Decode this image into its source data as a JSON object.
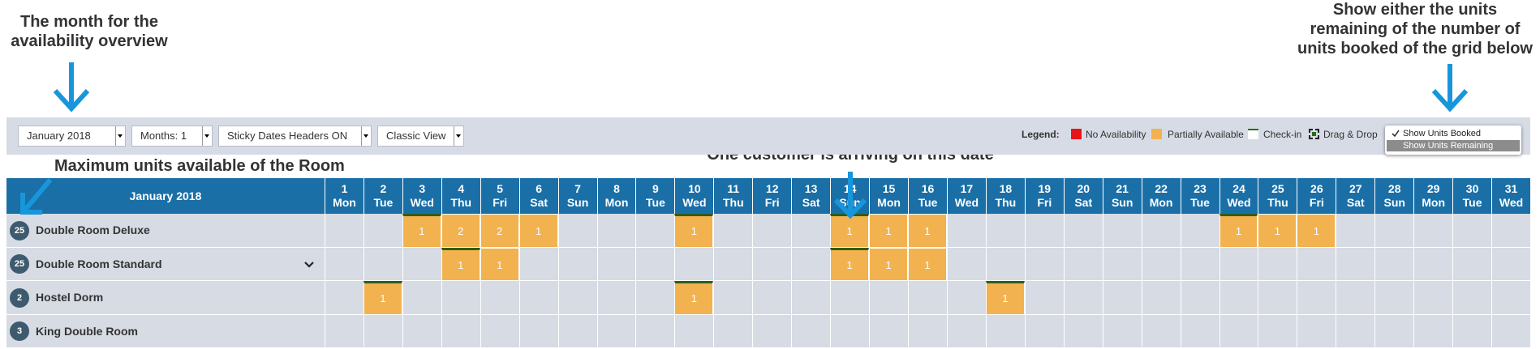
{
  "annotations": {
    "month": "The month for the availability overview",
    "units_toggle": "Show either the units remaining of the number of units booked of the grid below",
    "max_units": "Maximum units available of the Room",
    "arrival": "One customer is arriving on this date"
  },
  "toolbar": {
    "selects": [
      "January 2018",
      "Months: 1",
      "Sticky Dates Headers ON",
      "Classic View"
    ],
    "legend": {
      "label": "Legend:",
      "items": [
        "No Availability",
        "Partially Available",
        "Check-in",
        "Drag & Drop"
      ]
    },
    "dropdown": {
      "options": [
        "Show Units Booked",
        "Show Units Remaining"
      ],
      "selected": 0
    }
  },
  "grid": {
    "header": "January 2018",
    "days": [
      {
        "day": "1",
        "weekday": "Mon"
      },
      {
        "day": "2",
        "weekday": "Tue"
      },
      {
        "day": "3",
        "weekday": "Wed"
      },
      {
        "day": "4",
        "weekday": "Thu"
      },
      {
        "day": "5",
        "weekday": "Fri"
      },
      {
        "day": "6",
        "weekday": "Sat"
      },
      {
        "day": "7",
        "weekday": "Sun"
      },
      {
        "day": "8",
        "weekday": "Mon"
      },
      {
        "day": "9",
        "weekday": "Tue"
      },
      {
        "day": "10",
        "weekday": "Wed"
      },
      {
        "day": "11",
        "weekday": "Thu"
      },
      {
        "day": "12",
        "weekday": "Fri"
      },
      {
        "day": "13",
        "weekday": "Sat"
      },
      {
        "day": "14",
        "weekday": "Sun"
      },
      {
        "day": "15",
        "weekday": "Mon"
      },
      {
        "day": "16",
        "weekday": "Tue"
      },
      {
        "day": "17",
        "weekday": "Wed"
      },
      {
        "day": "18",
        "weekday": "Thu"
      },
      {
        "day": "19",
        "weekday": "Fri"
      },
      {
        "day": "20",
        "weekday": "Sat"
      },
      {
        "day": "21",
        "weekday": "Sun"
      },
      {
        "day": "22",
        "weekday": "Mon"
      },
      {
        "day": "23",
        "weekday": "Tue"
      },
      {
        "day": "24",
        "weekday": "Wed"
      },
      {
        "day": "25",
        "weekday": "Thu"
      },
      {
        "day": "26",
        "weekday": "Fri"
      },
      {
        "day": "27",
        "weekday": "Sat"
      },
      {
        "day": "28",
        "weekday": "Sun"
      },
      {
        "day": "29",
        "weekday": "Mon"
      },
      {
        "day": "30",
        "weekday": "Tue"
      },
      {
        "day": "31",
        "weekday": "Wed"
      }
    ],
    "rooms": [
      {
        "name": "Double Room Deluxe",
        "units": "25",
        "expandable": false,
        "bookings": [
          {
            "day": 3,
            "units": "1",
            "checkin": true
          },
          {
            "day": 4,
            "units": "2",
            "checkin": false
          },
          {
            "day": 5,
            "units": "2",
            "checkin": false
          },
          {
            "day": 6,
            "units": "1",
            "checkin": false
          },
          {
            "day": 10,
            "units": "1",
            "checkin": true
          },
          {
            "day": 14,
            "units": "1",
            "checkin": true
          },
          {
            "day": 15,
            "units": "1",
            "checkin": false
          },
          {
            "day": 16,
            "units": "1",
            "checkin": false
          },
          {
            "day": 24,
            "units": "1",
            "checkin": true
          },
          {
            "day": 25,
            "units": "1",
            "checkin": false
          },
          {
            "day": 26,
            "units": "1",
            "checkin": false
          }
        ]
      },
      {
        "name": "Double Room Standard",
        "units": "25",
        "expandable": true,
        "bookings": [
          {
            "day": 4,
            "units": "1",
            "checkin": true
          },
          {
            "day": 5,
            "units": "1",
            "checkin": false
          },
          {
            "day": 14,
            "units": "1",
            "checkin": true
          },
          {
            "day": 15,
            "units": "1",
            "checkin": false
          },
          {
            "day": 16,
            "units": "1",
            "checkin": false
          }
        ]
      },
      {
        "name": "Hostel Dorm",
        "units": "2",
        "expandable": false,
        "bookings": [
          {
            "day": 2,
            "units": "1",
            "checkin": true
          },
          {
            "day": 10,
            "units": "1",
            "checkin": true
          },
          {
            "day": 18,
            "units": "1",
            "checkin": true
          }
        ]
      },
      {
        "name": "King Double Room",
        "units": "3",
        "expandable": false,
        "bookings": []
      }
    ]
  }
}
